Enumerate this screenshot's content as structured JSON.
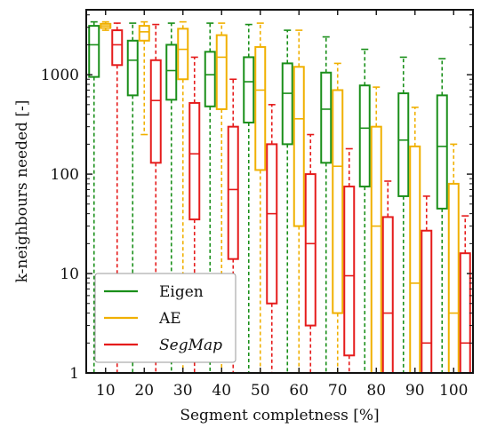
{
  "chart_data": {
    "type": "box",
    "categories": [
      "10",
      "20",
      "30",
      "40",
      "50",
      "60",
      "70",
      "80",
      "90",
      "100"
    ],
    "xlabel": "Segment completness [%]",
    "ylabel": "k-neighbours needed [-]",
    "yscale": "log",
    "ylim": [
      1,
      4500
    ],
    "yticks": [
      "1",
      "10",
      "100",
      "1000"
    ],
    "legend": {
      "placement": "bottom-left"
    },
    "series": [
      {
        "name": "Eigen",
        "color": "#1a8f1a",
        "boxes": [
          {
            "whislo": 1,
            "q1": 950,
            "med": 2000,
            "q3": 3100,
            "whishi": 3400
          },
          {
            "whislo": 1,
            "q1": 620,
            "med": 1400,
            "q3": 2200,
            "whishi": 3300
          },
          {
            "whislo": 1,
            "q1": 560,
            "med": 1100,
            "q3": 2000,
            "whishi": 3300
          },
          {
            "whislo": 1,
            "q1": 480,
            "med": 1000,
            "q3": 1700,
            "whishi": 3300
          },
          {
            "whislo": 1,
            "q1": 330,
            "med": 850,
            "q3": 1500,
            "whishi": 3200
          },
          {
            "whislo": 1,
            "q1": 200,
            "med": 650,
            "q3": 1300,
            "whishi": 2800
          },
          {
            "whislo": 1,
            "q1": 130,
            "med": 450,
            "q3": 1050,
            "whishi": 2400
          },
          {
            "whislo": 1,
            "q1": 75,
            "med": 290,
            "q3": 780,
            "whishi": 1800
          },
          {
            "whislo": 1,
            "q1": 60,
            "med": 220,
            "q3": 650,
            "whishi": 1500
          },
          {
            "whislo": 1,
            "q1": 45,
            "med": 190,
            "q3": 620,
            "whishi": 1450
          }
        ]
      },
      {
        "name": "AE",
        "color": "#f0b000",
        "boxes": [
          {
            "whislo": 2800,
            "q1": 2950,
            "med": 3100,
            "q3": 3250,
            "whishi": 3400
          },
          {
            "whislo": 250,
            "q1": 2200,
            "med": 2700,
            "q3": 3100,
            "whishi": 3400
          },
          {
            "whislo": 1,
            "q1": 900,
            "med": 1800,
            "q3": 2900,
            "whishi": 3400
          },
          {
            "whislo": 1,
            "q1": 450,
            "med": 1500,
            "q3": 2500,
            "whishi": 3300
          },
          {
            "whislo": 1,
            "q1": 110,
            "med": 700,
            "q3": 1900,
            "whishi": 3300
          },
          {
            "whislo": 1,
            "q1": 30,
            "med": 360,
            "q3": 1200,
            "whishi": 2800
          },
          {
            "whislo": 1,
            "q1": 4,
            "med": 120,
            "q3": 700,
            "whishi": 1300
          },
          {
            "whislo": 1,
            "q1": 1,
            "med": 30,
            "q3": 300,
            "whishi": 750
          },
          {
            "whislo": 1,
            "q1": 1,
            "med": 8,
            "q3": 190,
            "whishi": 470
          },
          {
            "whislo": 1,
            "q1": 1,
            "med": 4,
            "q3": 80,
            "whishi": 200
          }
        ]
      },
      {
        "name": "SegMap",
        "color": "#e51b1b",
        "boxes": [
          {
            "whislo": 1,
            "q1": 1250,
            "med": 2000,
            "q3": 2800,
            "whishi": 3300
          },
          {
            "whislo": 1,
            "q1": 130,
            "med": 550,
            "q3": 1400,
            "whishi": 3200
          },
          {
            "whislo": 1,
            "q1": 35,
            "med": 160,
            "q3": 520,
            "whishi": 1500
          },
          {
            "whislo": 1,
            "q1": 14,
            "med": 70,
            "q3": 300,
            "whishi": 900
          },
          {
            "whislo": 1,
            "q1": 5,
            "med": 40,
            "q3": 200,
            "whishi": 500
          },
          {
            "whislo": 1,
            "q1": 3,
            "med": 20,
            "q3": 100,
            "whishi": 250
          },
          {
            "whislo": 1,
            "q1": 1.5,
            "med": 9.5,
            "q3": 75,
            "whishi": 180
          },
          {
            "whislo": 1,
            "q1": 1,
            "med": 4,
            "q3": 37,
            "whishi": 85
          },
          {
            "whislo": 1,
            "q1": 1,
            "med": 2,
            "q3": 27,
            "whishi": 60
          },
          {
            "whislo": 1,
            "q1": 1,
            "med": 2,
            "q3": 16,
            "whishi": 38
          }
        ]
      }
    ]
  }
}
